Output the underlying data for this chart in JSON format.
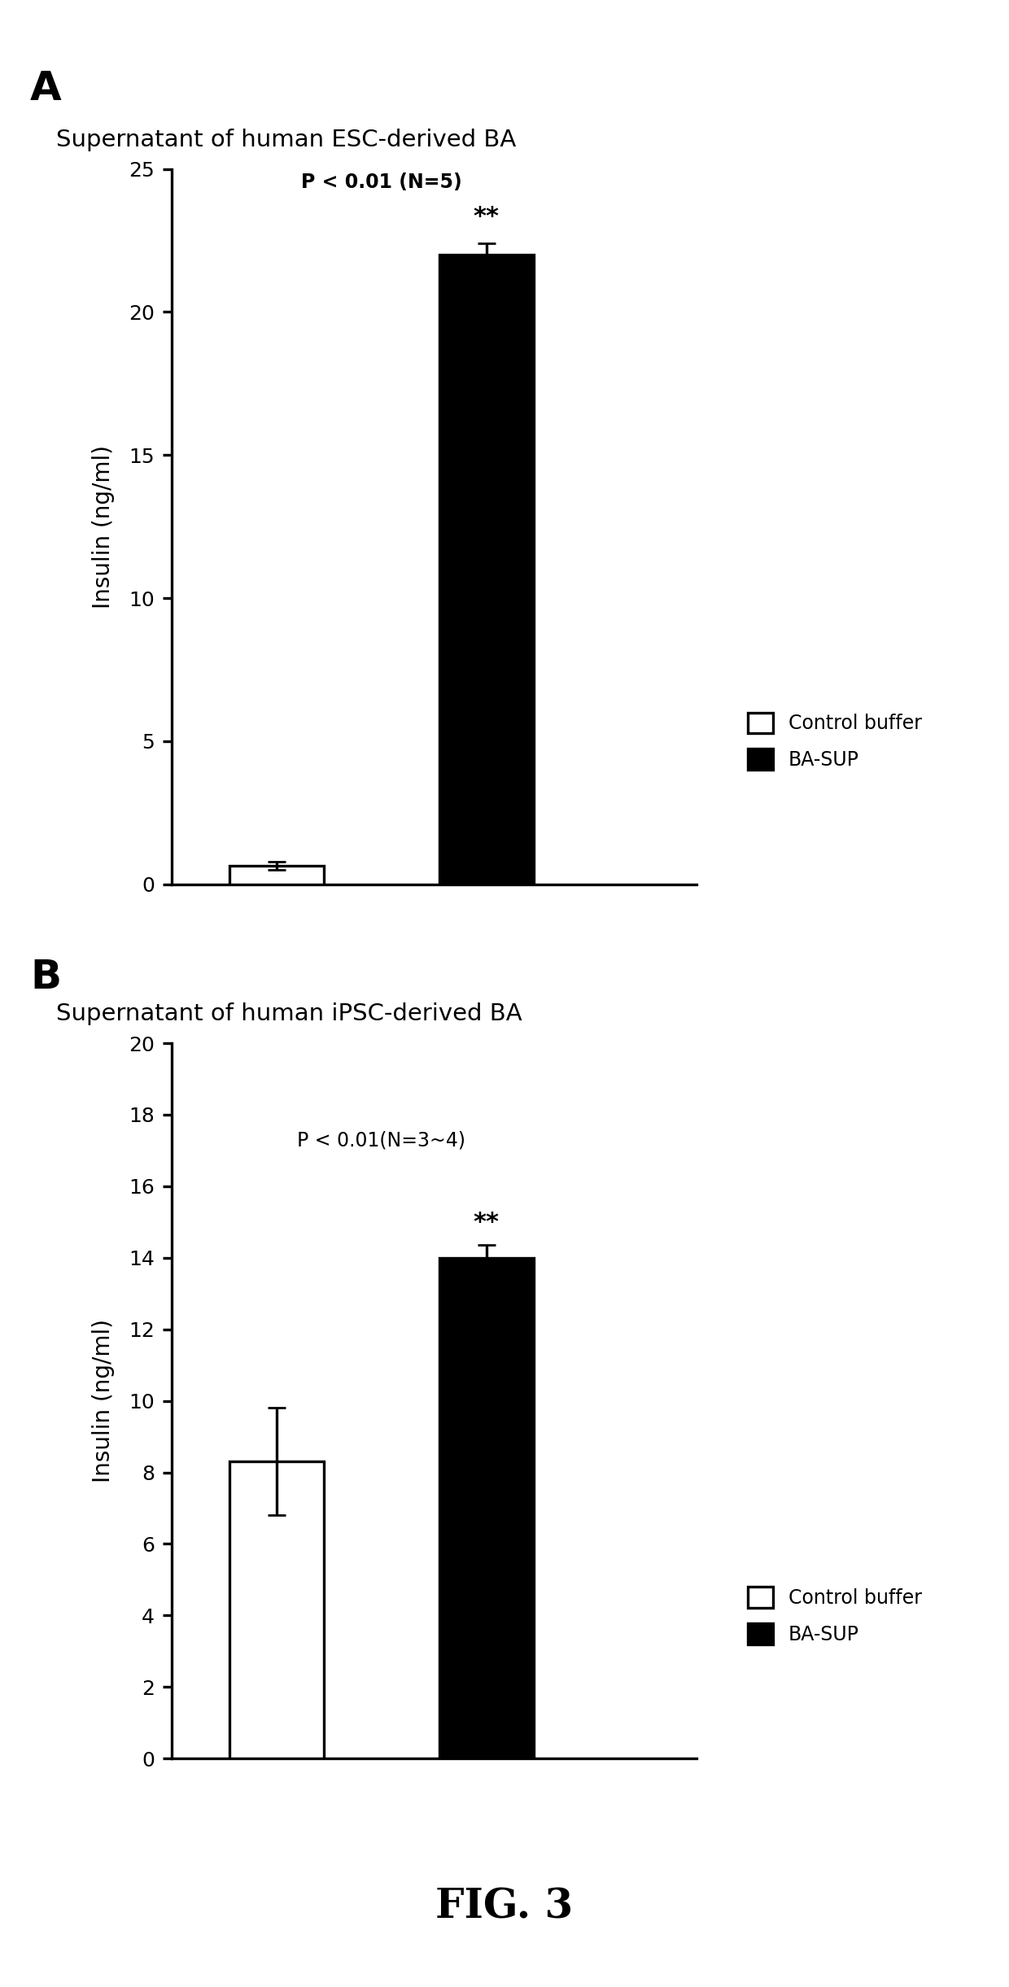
{
  "panel_A": {
    "title": "Supernatant of human ESC-derived BA",
    "panel_label": "A",
    "values": [
      0.65,
      22.0
    ],
    "errors": [
      0.15,
      0.4
    ],
    "bar_colors": [
      "white",
      "black"
    ],
    "bar_edgecolors": [
      "black",
      "black"
    ],
    "ylabel": "Insulin (ng/ml)",
    "ylim": [
      0,
      25
    ],
    "yticks": [
      0,
      5,
      10,
      15,
      20,
      25
    ],
    "stat_text": "P < 0.01 (N=5)",
    "significance": "**",
    "legend_labels": [
      "Control buffer",
      "BA-SUP"
    ],
    "legend_colors": [
      "white",
      "black"
    ]
  },
  "panel_B": {
    "title": "Supernatant of human iPSC-derived BA",
    "panel_label": "B",
    "values": [
      8.3,
      14.0
    ],
    "errors": [
      1.5,
      0.35
    ],
    "bar_colors": [
      "white",
      "black"
    ],
    "bar_edgecolors": [
      "black",
      "black"
    ],
    "ylabel": "Insulin (ng/ml)",
    "ylim": [
      0,
      20
    ],
    "yticks": [
      0,
      2,
      4,
      6,
      8,
      10,
      12,
      14,
      16,
      18,
      20
    ],
    "stat_text": "P < 0.01(N=3~4)",
    "significance": "**",
    "legend_labels": [
      "Control buffer",
      "BA-SUP"
    ],
    "legend_colors": [
      "white",
      "black"
    ]
  },
  "fig_label": "FIG. 3",
  "background_color": "#ffffff",
  "figure_width": 6.2,
  "figure_height": 12.21
}
